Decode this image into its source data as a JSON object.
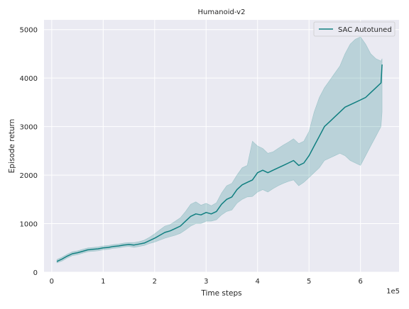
{
  "chart_data": {
    "type": "line",
    "title": "Humanoid-v2",
    "xlabel": "Time steps",
    "ylabel": "Episode return",
    "x_offset_label": "1e5",
    "xlim": [
      -0.15,
      6.75
    ],
    "ylim": [
      0,
      5200
    ],
    "x_ticks": [
      0,
      1,
      2,
      3,
      4,
      5,
      6
    ],
    "x_tick_labels": [
      "0",
      "1",
      "2",
      "3",
      "4",
      "5",
      "6"
    ],
    "y_ticks": [
      0,
      1000,
      2000,
      3000,
      4000,
      5000
    ],
    "y_tick_labels": [
      "0",
      "1000",
      "2000",
      "3000",
      "4000",
      "5000"
    ],
    "grid": true,
    "legend_position": "top-right",
    "colors": {
      "line": "#107f80",
      "band": "#107f80",
      "background": "#eaeaf2",
      "grid": "#ffffff"
    },
    "series": [
      {
        "name": "SAC Autotuned",
        "x": [
          0.1,
          0.2,
          0.3,
          0.4,
          0.5,
          0.6,
          0.7,
          0.8,
          0.9,
          1.0,
          1.1,
          1.2,
          1.3,
          1.4,
          1.5,
          1.6,
          1.7,
          1.8,
          1.9,
          2.0,
          2.1,
          2.2,
          2.3,
          2.4,
          2.5,
          2.6,
          2.7,
          2.8,
          2.9,
          3.0,
          3.1,
          3.2,
          3.3,
          3.4,
          3.5,
          3.6,
          3.7,
          3.8,
          3.9,
          4.0,
          4.1,
          4.2,
          4.3,
          4.4,
          4.5,
          4.6,
          4.7,
          4.8,
          4.9,
          5.0,
          5.1,
          5.2,
          5.3,
          5.4,
          5.5,
          5.6,
          5.7,
          5.8,
          5.9,
          6.0,
          6.1,
          6.2,
          6.3,
          6.4,
          6.42
        ],
        "y": [
          220,
          270,
          330,
          380,
          400,
          430,
          460,
          470,
          480,
          500,
          510,
          530,
          540,
          560,
          570,
          560,
          580,
          600,
          650,
          700,
          760,
          820,
          850,
          900,
          950,
          1050,
          1150,
          1200,
          1180,
          1230,
          1200,
          1250,
          1400,
          1500,
          1550,
          1700,
          1800,
          1850,
          1900,
          2050,
          2100,
          2050,
          2100,
          2150,
          2200,
          2250,
          2300,
          2200,
          2250,
          2400,
          2600,
          2800,
          3000,
          3100,
          3200,
          3300,
          3400,
          3450,
          3500,
          3550,
          3600,
          3700,
          3800,
          3900,
          4280
        ],
        "lower": [
          190,
          230,
          290,
          340,
          360,
          390,
          420,
          430,
          440,
          460,
          470,
          490,
          500,
          520,
          530,
          510,
          530,
          550,
          590,
          620,
          660,
          700,
          730,
          760,
          800,
          870,
          950,
          1000,
          1000,
          1050,
          1050,
          1080,
          1180,
          1250,
          1280,
          1420,
          1500,
          1550,
          1560,
          1650,
          1700,
          1650,
          1720,
          1780,
          1830,
          1870,
          1900,
          1780,
          1850,
          1950,
          2050,
          2150,
          2300,
          2350,
          2400,
          2450,
          2400,
          2300,
          2250,
          2200,
          2400,
          2600,
          2800,
          3000,
          3300
        ],
        "upper": [
          260,
          310,
          370,
          420,
          440,
          470,
          500,
          510,
          520,
          540,
          550,
          570,
          580,
          600,
          610,
          610,
          630,
          660,
          720,
          790,
          870,
          950,
          980,
          1050,
          1120,
          1250,
          1400,
          1450,
          1380,
          1420,
          1370,
          1430,
          1630,
          1780,
          1830,
          2000,
          2150,
          2200,
          2700,
          2600,
          2550,
          2450,
          2480,
          2550,
          2620,
          2680,
          2750,
          2650,
          2700,
          2900,
          3300,
          3600,
          3800,
          3950,
          4100,
          4250,
          4500,
          4700,
          4800,
          4850,
          4700,
          4500,
          4400,
          4350,
          4400
        ]
      }
    ]
  }
}
